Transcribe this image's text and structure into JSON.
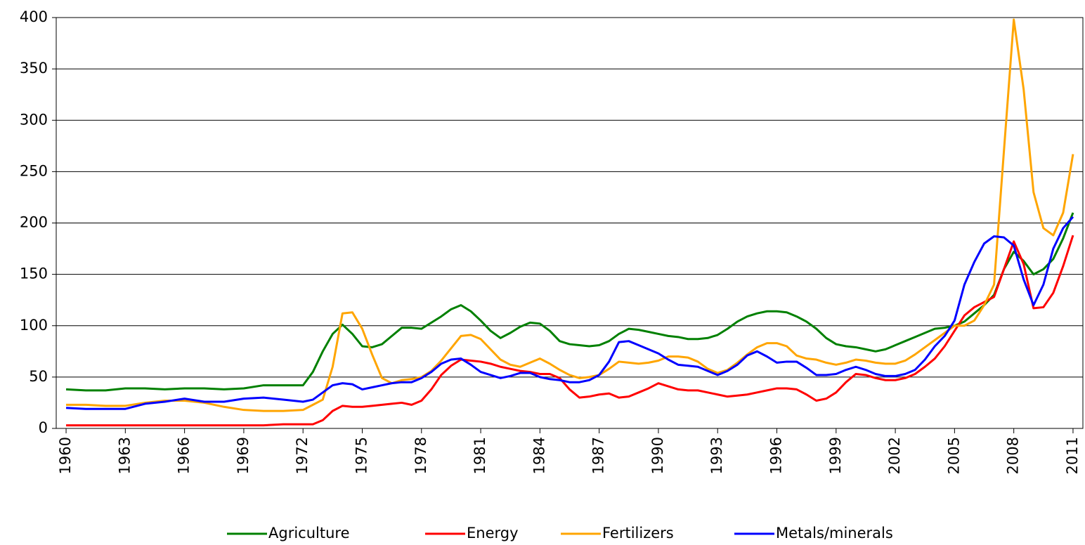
{
  "chart_data": {
    "type": "line",
    "x": [
      1960,
      1961,
      1962,
      1963,
      1964,
      1965,
      1966,
      1967,
      1968,
      1969,
      1970,
      1971,
      1972,
      1972.5,
      1973,
      1973.5,
      1974,
      1974.5,
      1975,
      1975.5,
      1976,
      1976.5,
      1977,
      1977.5,
      1978,
      1978.5,
      1979,
      1979.5,
      1980,
      1980.5,
      1981,
      1981.5,
      1982,
      1982.5,
      1983,
      1983.5,
      1984,
      1984.5,
      1985,
      1985.5,
      1986,
      1986.5,
      1987,
      1987.5,
      1988,
      1988.5,
      1989,
      1989.5,
      1990,
      1990.5,
      1991,
      1991.5,
      1992,
      1992.5,
      1993,
      1993.5,
      1994,
      1994.5,
      1995,
      1995.5,
      1996,
      1996.5,
      1997,
      1997.5,
      1998,
      1998.5,
      1999,
      1999.5,
      2000,
      2000.5,
      2001,
      2001.5,
      2002,
      2002.5,
      2003,
      2003.5,
      2004,
      2004.5,
      2005,
      2005.5,
      2006,
      2006.5,
      2007,
      2007.5,
      2008,
      2008.5,
      2009,
      2009.5,
      2010,
      2010.5,
      2011
    ],
    "series": [
      {
        "name": "Agriculture",
        "color": "#008000",
        "values": [
          38,
          37,
          37,
          39,
          39,
          38,
          39,
          39,
          38,
          39,
          42,
          42,
          42,
          55,
          75,
          92,
          101,
          92,
          80,
          79,
          82,
          90,
          98,
          98,
          97,
          103,
          109,
          116,
          120,
          114,
          105,
          95,
          88,
          93,
          99,
          103,
          102,
          95,
          85,
          82,
          81,
          80,
          81,
          85,
          92,
          97,
          96,
          94,
          92,
          90,
          89,
          87,
          87,
          88,
          91,
          97,
          104,
          109,
          112,
          114,
          114,
          113,
          109,
          104,
          97,
          88,
          82,
          80,
          79,
          77,
          75,
          77,
          81,
          85,
          89,
          93,
          97,
          98,
          100,
          104,
          112,
          120,
          130,
          155,
          172,
          163,
          150,
          155,
          165,
          185,
          210
        ]
      },
      {
        "name": "Energy",
        "color": "#ff0000",
        "values": [
          3,
          3,
          3,
          3,
          3,
          3,
          3,
          3,
          3,
          3,
          3,
          4,
          4,
          4,
          8,
          17,
          22,
          21,
          21,
          22,
          23,
          24,
          25,
          23,
          27,
          38,
          52,
          61,
          67,
          66,
          65,
          63,
          60,
          58,
          56,
          55,
          53,
          53,
          49,
          38,
          30,
          31,
          33,
          34,
          30,
          31,
          35,
          39,
          44,
          41,
          38,
          37,
          37,
          35,
          33,
          31,
          32,
          33,
          35,
          37,
          39,
          39,
          38,
          33,
          27,
          29,
          35,
          45,
          53,
          52,
          49,
          47,
          47,
          49,
          53,
          60,
          68,
          80,
          95,
          110,
          118,
          123,
          128,
          155,
          182,
          160,
          117,
          118,
          132,
          158,
          188
        ]
      },
      {
        "name": "Fertilizers",
        "color": "#ffa500",
        "values": [
          23,
          23,
          22,
          22,
          25,
          27,
          27,
          25,
          21,
          18,
          17,
          17,
          18,
          23,
          28,
          60,
          112,
          113,
          97,
          72,
          49,
          44,
          47,
          48,
          50,
          56,
          66,
          78,
          90,
          91,
          87,
          77,
          67,
          62,
          60,
          64,
          68,
          63,
          57,
          52,
          49,
          50,
          52,
          58,
          65,
          64,
          63,
          64,
          66,
          70,
          70,
          69,
          65,
          58,
          54,
          57,
          64,
          72,
          79,
          83,
          83,
          80,
          71,
          68,
          67,
          64,
          62,
          64,
          67,
          66,
          64,
          63,
          63,
          66,
          72,
          79,
          86,
          93,
          100,
          100,
          105,
          120,
          140,
          270,
          398,
          330,
          230,
          195,
          188,
          210,
          267
        ]
      },
      {
        "name": "Metals/minerals",
        "color": "#0000ff",
        "values": [
          20,
          19,
          19,
          19,
          24,
          26,
          29,
          26,
          26,
          29,
          30,
          28,
          26,
          28,
          35,
          42,
          44,
          43,
          38,
          40,
          42,
          44,
          45,
          45,
          49,
          55,
          63,
          67,
          68,
          62,
          55,
          52,
          49,
          51,
          54,
          54,
          50,
          48,
          47,
          45,
          45,
          47,
          52,
          65,
          84,
          85,
          81,
          77,
          73,
          67,
          62,
          61,
          60,
          56,
          52,
          56,
          62,
          71,
          75,
          70,
          64,
          65,
          65,
          59,
          52,
          52,
          53,
          57,
          60,
          57,
          53,
          51,
          51,
          53,
          57,
          67,
          80,
          90,
          105,
          140,
          162,
          180,
          187,
          186,
          178,
          145,
          120,
          140,
          175,
          195,
          206
        ]
      }
    ],
    "xlim": [
      1959.5,
      2011.5
    ],
    "xticks": [
      1960,
      1963,
      1966,
      1969,
      1972,
      1975,
      1978,
      1981,
      1984,
      1987,
      1990,
      1993,
      1996,
      1999,
      2002,
      2005,
      2008,
      2011
    ],
    "ylim": [
      0,
      400
    ],
    "yticks": [
      0,
      50,
      100,
      150,
      200,
      250,
      300,
      350,
      400
    ],
    "grid": true,
    "legend": "bottom"
  }
}
